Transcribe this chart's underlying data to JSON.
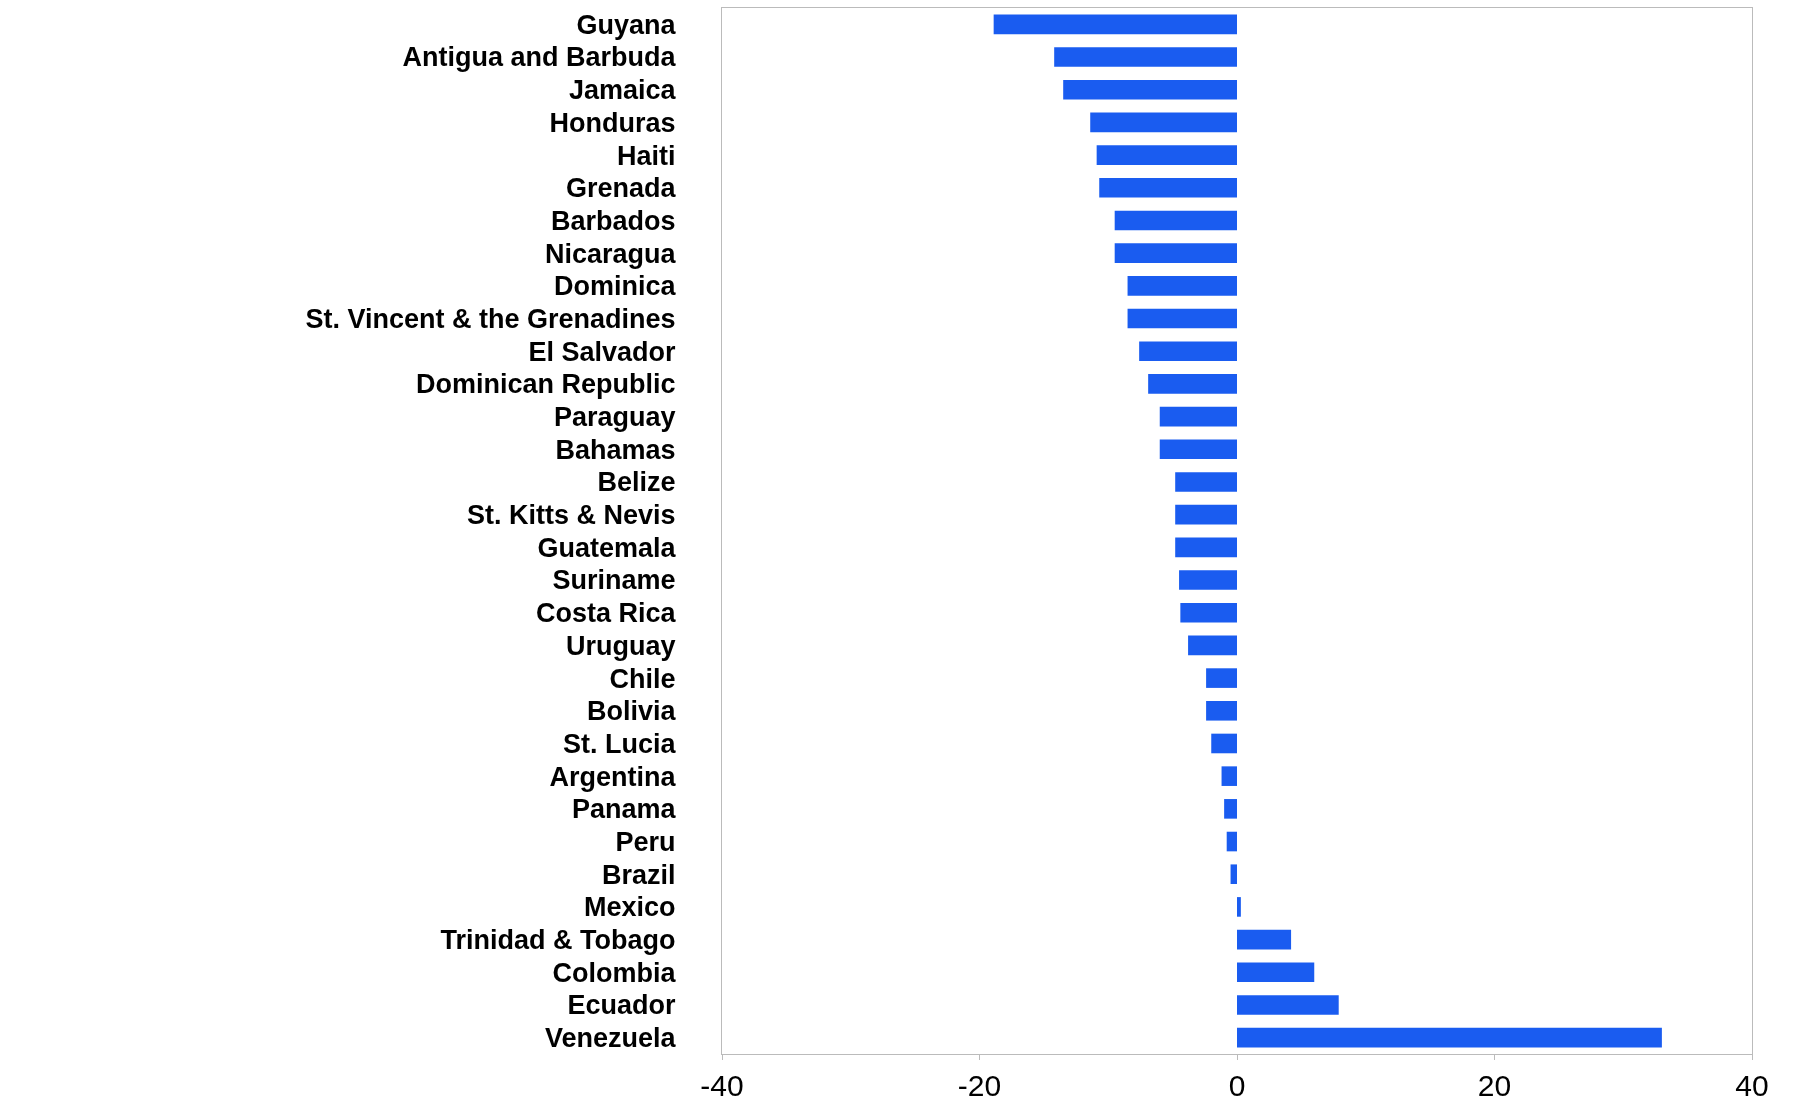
{
  "chart_data": {
    "type": "bar",
    "orientation": "horizontal",
    "categories": [
      "Guyana",
      "Antigua and Barbuda",
      "Jamaica",
      "Honduras",
      "Haiti",
      "Grenada",
      "Barbados",
      "Nicaragua",
      "Dominica",
      "St. Vincent & the Grenadines",
      "El Salvador",
      "Dominican Republic",
      "Paraguay",
      "Bahamas",
      "Belize",
      "St. Kitts & Nevis",
      "Guatemala",
      "Suriname",
      "Costa Rica",
      "Uruguay",
      "Chile",
      "Bolivia",
      "St. Lucia",
      "Argentina",
      "Panama",
      "Peru",
      "Brazil",
      "Mexico",
      "Trinidad & Tobago",
      "Colombia",
      "Ecuador",
      "Venezuela"
    ],
    "values": [
      -18.9,
      -14.2,
      -13.5,
      -11.4,
      -10.9,
      -10.7,
      -9.5,
      -9.5,
      -8.5,
      -8.5,
      -7.6,
      -6.9,
      -6.0,
      -6.0,
      -4.8,
      -4.8,
      -4.8,
      -4.5,
      -4.4,
      -3.8,
      -2.4,
      -2.4,
      -2.0,
      -1.2,
      -1.0,
      -0.8,
      -0.5,
      0.3,
      4.2,
      6.0,
      7.9,
      33.0
    ],
    "color": "#1a5cf0",
    "xlim": [
      -40,
      40
    ],
    "xticks": [
      -40,
      -20,
      0,
      20,
      40
    ]
  }
}
